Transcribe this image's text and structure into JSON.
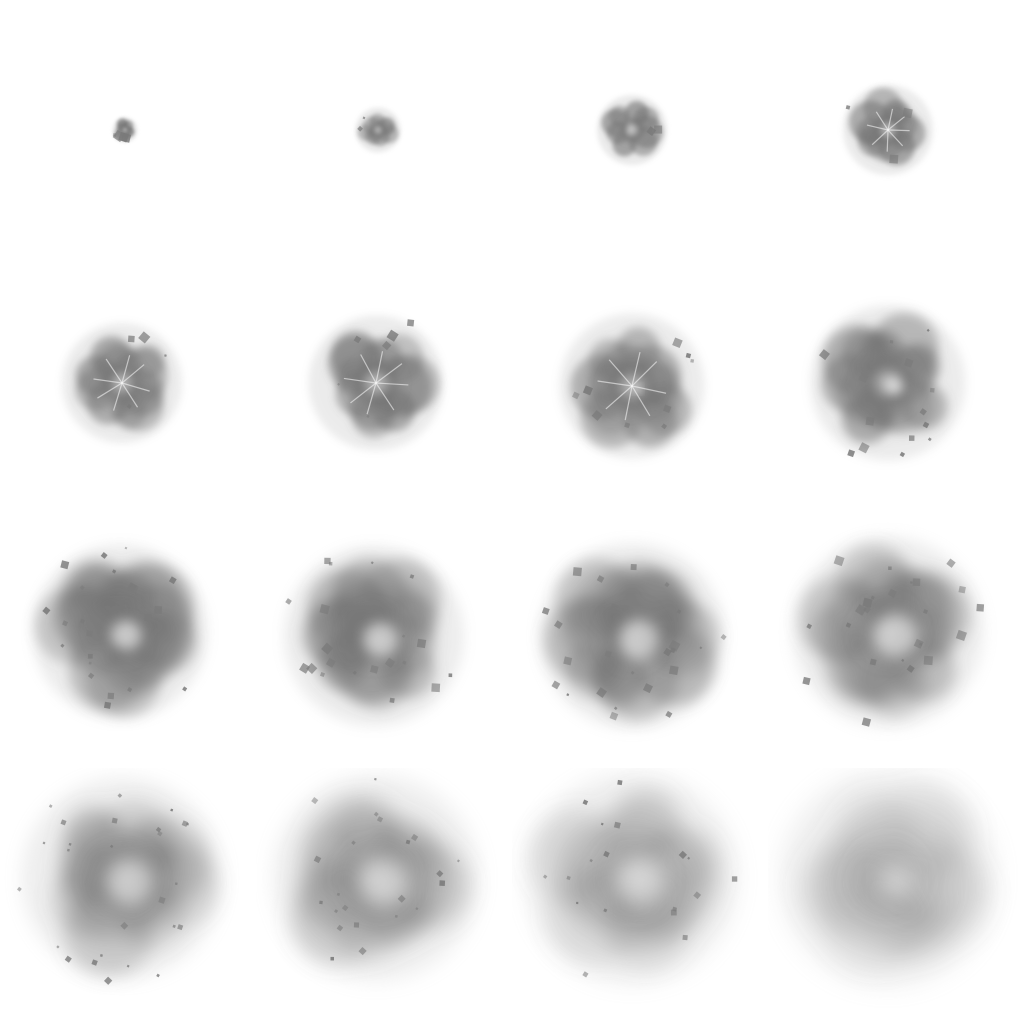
{
  "sprite_sheet": {
    "description_free": true,
    "columns": 4,
    "rows": 4,
    "frame_count": 16,
    "smoke_color": "#6e6e6e",
    "background": "#ffffff",
    "frames": [
      {
        "index": 1
      },
      {
        "index": 2
      },
      {
        "index": 3
      },
      {
        "index": 4
      },
      {
        "index": 5
      },
      {
        "index": 6
      },
      {
        "index": 7
      },
      {
        "index": 8
      },
      {
        "index": 9
      },
      {
        "index": 10
      },
      {
        "index": 11
      },
      {
        "index": 12
      },
      {
        "index": 13
      },
      {
        "index": 14
      },
      {
        "index": 15
      },
      {
        "index": 16
      }
    ]
  }
}
